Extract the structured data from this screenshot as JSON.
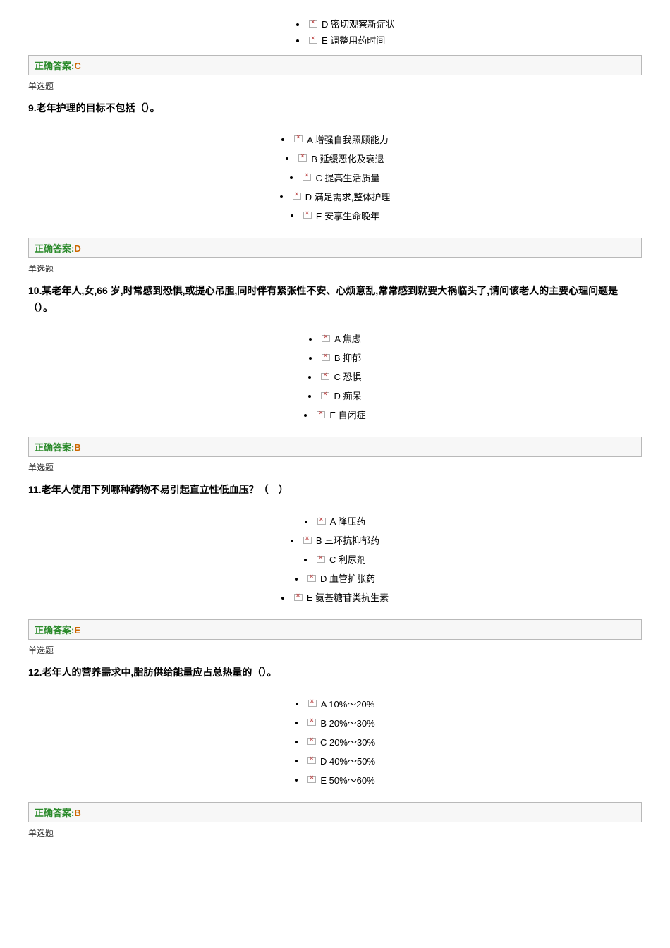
{
  "labels": {
    "answer_prefix": "正确答案:",
    "q_type_single": "单选题"
  },
  "colors": {
    "answer_label": "#2a8a2a",
    "answer_letter": "#cc6600",
    "box_border": "#b9b9b9",
    "box_bg": "#f7f7f7",
    "icon_border": "#b0b0b0",
    "icon_x": "#c05050"
  },
  "top_remainder": {
    "options": [
      "D 密切观察新症状",
      "E 调整用药时间"
    ],
    "answer": "C"
  },
  "questions": [
    {
      "num": "9.",
      "stem": "老年护理的目标不包括（）。",
      "options": [
        "A 增强自我照顾能力",
        "B 延缓恶化及衰退",
        "C 提高生活质量",
        "D 满足需求,整体护理",
        "E 安享生命晚年"
      ],
      "answer": "D"
    },
    {
      "num": "10.",
      "stem": "某老年人,女,66 岁,时常感到恐惧,或提心吊胆,同时伴有紧张性不安、心烦意乱,常常感到就要大祸临头了,请问该老人的主要心理问题是（）。",
      "options": [
        "A 焦虑",
        "B 抑郁",
        "C 恐惧",
        "D 痴呆",
        "E 自闭症"
      ],
      "answer": "B"
    },
    {
      "num": "11.",
      "stem": "老年人使用下列哪种药物不易引起直立性低血压？（　）",
      "options": [
        "A 降压药",
        "B 三环抗抑郁药",
        "C 利尿剂",
        "D 血管扩张药",
        "E 氨基糖苷类抗生素"
      ],
      "answer": "E"
    },
    {
      "num": "12.",
      "stem": "老年人的营养需求中,脂肪供给能量应占总热量的（）。",
      "options": [
        "A 10%～20%",
        "B 20%～30%",
        "C 20%～30%",
        "D 40%～50%",
        "E 50%～60%"
      ],
      "answer": "B"
    }
  ]
}
